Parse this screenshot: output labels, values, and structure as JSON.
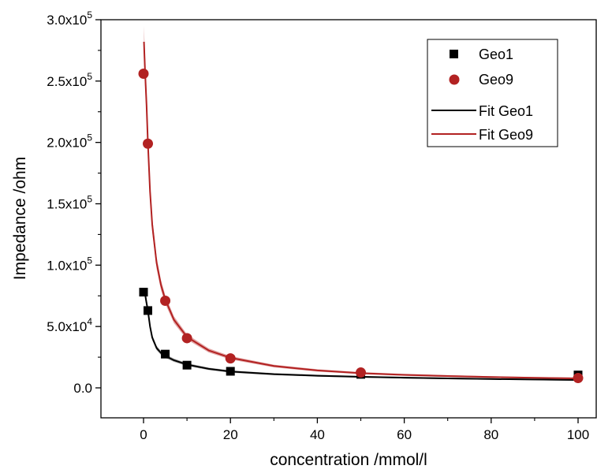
{
  "chart_data": {
    "type": "scatter",
    "xlabel": "concentration /mmol/l",
    "ylabel": "Impedance /ohm",
    "xlim": [
      -10,
      104
    ],
    "ylim": [
      -25000,
      300000
    ],
    "x_ticks": [
      0,
      20,
      40,
      60,
      80,
      100
    ],
    "x_tick_labels": [
      "0",
      "20",
      "40",
      "60",
      "80",
      "100"
    ],
    "y_ticks": [
      0,
      50000,
      100000,
      150000,
      200000,
      250000,
      300000
    ],
    "y_tick_labels": [
      {
        "mantissa": "0.0",
        "exp": ""
      },
      {
        "mantissa": "5.0x10",
        "exp": "4"
      },
      {
        "mantissa": "1.0x10",
        "exp": "5"
      },
      {
        "mantissa": "1.5x10",
        "exp": "5"
      },
      {
        "mantissa": "2.0x10",
        "exp": "5"
      },
      {
        "mantissa": "2.5x10",
        "exp": "5"
      },
      {
        "mantissa": "3.0x10",
        "exp": "5"
      }
    ],
    "grid": false,
    "legend_position": "top-right",
    "series": [
      {
        "name": "Geo1",
        "kind": "scatter",
        "marker": "square",
        "color": "#000000",
        "x": [
          0,
          1,
          5,
          10,
          20,
          50,
          100
        ],
        "y": [
          78000,
          63000,
          27500,
          18500,
          13500,
          11000,
          10500
        ]
      },
      {
        "name": "Geo9",
        "kind": "scatter",
        "marker": "circle",
        "color": "#b22222",
        "x": [
          0,
          1,
          5,
          10,
          20,
          50,
          100
        ],
        "y": [
          256000,
          199000,
          71000,
          40500,
          24000,
          12500,
          8000
        ]
      },
      {
        "name": "Fit Geo1",
        "kind": "line",
        "color": "#000000",
        "band_color": "#888888",
        "x": [
          0.3,
          0.6,
          1,
          1.5,
          2,
          3,
          4,
          5,
          7,
          10,
          15,
          20,
          30,
          40,
          50,
          60,
          70,
          80,
          90,
          100
        ],
        "y": [
          78000,
          71000,
          63000,
          50000,
          41000,
          32500,
          28500,
          26000,
          22500,
          19000,
          15500,
          13300,
          11200,
          9900,
          9000,
          8300,
          7700,
          7200,
          6800,
          6400
        ]
      },
      {
        "name": "Fit Geo9",
        "kind": "line",
        "color": "#b22222",
        "band_color": "#d98a8a",
        "x": [
          0.1,
          0.2,
          0.35,
          0.5,
          0.7,
          1,
          1.5,
          2,
          3,
          4,
          5,
          7,
          10,
          15,
          20,
          30,
          40,
          50,
          60,
          70,
          80,
          90,
          100
        ],
        "y": [
          282000,
          272000,
          258000,
          246000,
          230000,
          200000,
          160000,
          133000,
          102000,
          84000,
          72000,
          55500,
          41500,
          30500,
          24500,
          17800,
          14200,
          12000,
          10600,
          9600,
          8800,
          8200,
          7700
        ]
      }
    ]
  }
}
